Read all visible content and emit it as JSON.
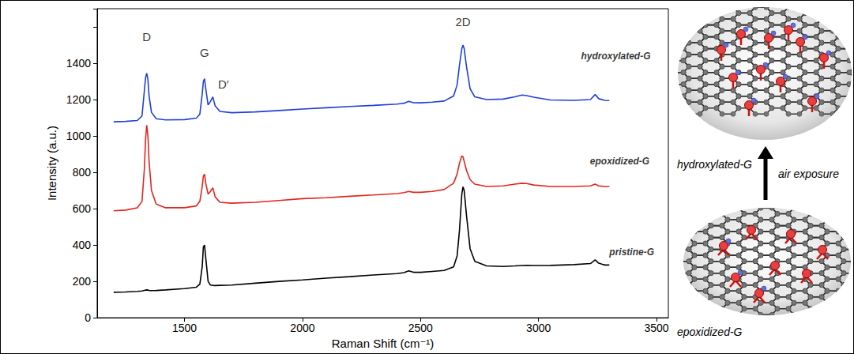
{
  "chart_data": {
    "type": "line",
    "x_label": "Raman Shift (cm⁻¹)",
    "y_label": "Intensity (a.u.)",
    "xlim": [
      1130,
      3550
    ],
    "xticks": [
      1500,
      2000,
      2500,
      3000,
      3500
    ],
    "ylim": [
      0,
      1700
    ],
    "yticks": [
      0,
      200,
      400,
      600,
      800,
      1000,
      1200,
      1400
    ],
    "grid": false,
    "x": [
      1200,
      1250,
      1300,
      1320,
      1330,
      1335,
      1340,
      1345,
      1350,
      1360,
      1380,
      1420,
      1500,
      1550,
      1565,
      1575,
      1580,
      1585,
      1590,
      1600,
      1610,
      1620,
      1630,
      1650,
      1700,
      1800,
      1900,
      2000,
      2100,
      2200,
      2300,
      2400,
      2430,
      2450,
      2470,
      2500,
      2550,
      2600,
      2640,
      2655,
      2665,
      2675,
      2680,
      2685,
      2695,
      2710,
      2730,
      2780,
      2850,
      2900,
      2930,
      2950,
      2980,
      3050,
      3150,
      3220,
      3240,
      3255,
      3280,
      3300
    ],
    "series": [
      {
        "name": "hydroxylated-G",
        "color": "#1f3fd8",
        "label_at": [
          3180,
          1440
        ],
        "values": [
          1078,
          1080,
          1085,
          1110,
          1250,
          1320,
          1345,
          1310,
          1220,
          1130,
          1095,
          1088,
          1090,
          1098,
          1120,
          1230,
          1300,
          1315,
          1260,
          1170,
          1190,
          1215,
          1165,
          1135,
          1128,
          1132,
          1140,
          1148,
          1155,
          1162,
          1168,
          1175,
          1180,
          1190,
          1183,
          1182,
          1186,
          1192,
          1220,
          1280,
          1390,
          1480,
          1500,
          1480,
          1380,
          1260,
          1215,
          1200,
          1203,
          1215,
          1225,
          1222,
          1213,
          1198,
          1196,
          1200,
          1228,
          1205,
          1196,
          1195
        ]
      },
      {
        "name": "epoxidized-G",
        "color": "#e3251f",
        "label_at": [
          3218,
          860
        ],
        "values": [
          588,
          592,
          605,
          640,
          820,
          980,
          1060,
          1000,
          860,
          700,
          625,
          605,
          605,
          615,
          640,
          720,
          780,
          790,
          740,
          680,
          695,
          715,
          665,
          635,
          630,
          635,
          645,
          655,
          660,
          668,
          675,
          683,
          688,
          695,
          690,
          690,
          695,
          705,
          740,
          790,
          850,
          890,
          885,
          860,
          810,
          760,
          735,
          722,
          725,
          735,
          740,
          738,
          730,
          722,
          722,
          725,
          735,
          725,
          722,
          722
        ]
      },
      {
        "name": "pristine-G",
        "color": "#000000",
        "label_at": [
          3300,
          360
        ],
        "values": [
          140,
          142,
          145,
          147,
          150,
          152,
          153,
          152,
          150,
          149,
          150,
          153,
          160,
          168,
          185,
          280,
          390,
          400,
          330,
          200,
          180,
          178,
          177,
          178,
          180,
          190,
          200,
          208,
          218,
          226,
          235,
          243,
          248,
          258,
          250,
          250,
          255,
          260,
          280,
          340,
          480,
          680,
          720,
          700,
          560,
          380,
          310,
          285,
          282,
          285,
          287,
          288,
          287,
          288,
          292,
          298,
          318,
          300,
          290,
          290
        ]
      }
    ],
    "annotations": [
      {
        "text": "D",
        "x": 1340,
        "y": 1545
      },
      {
        "text": "G",
        "x": 1585,
        "y": 1460
      },
      {
        "text": "D′",
        "x": 1665,
        "y": 1285
      },
      {
        "text": "2D",
        "x": 2680,
        "y": 1630
      }
    ]
  },
  "illustration": {
    "top_label": "hydroxylated-G",
    "arrow_label": "air exposure",
    "bottom_label": "epoxidized-G"
  }
}
